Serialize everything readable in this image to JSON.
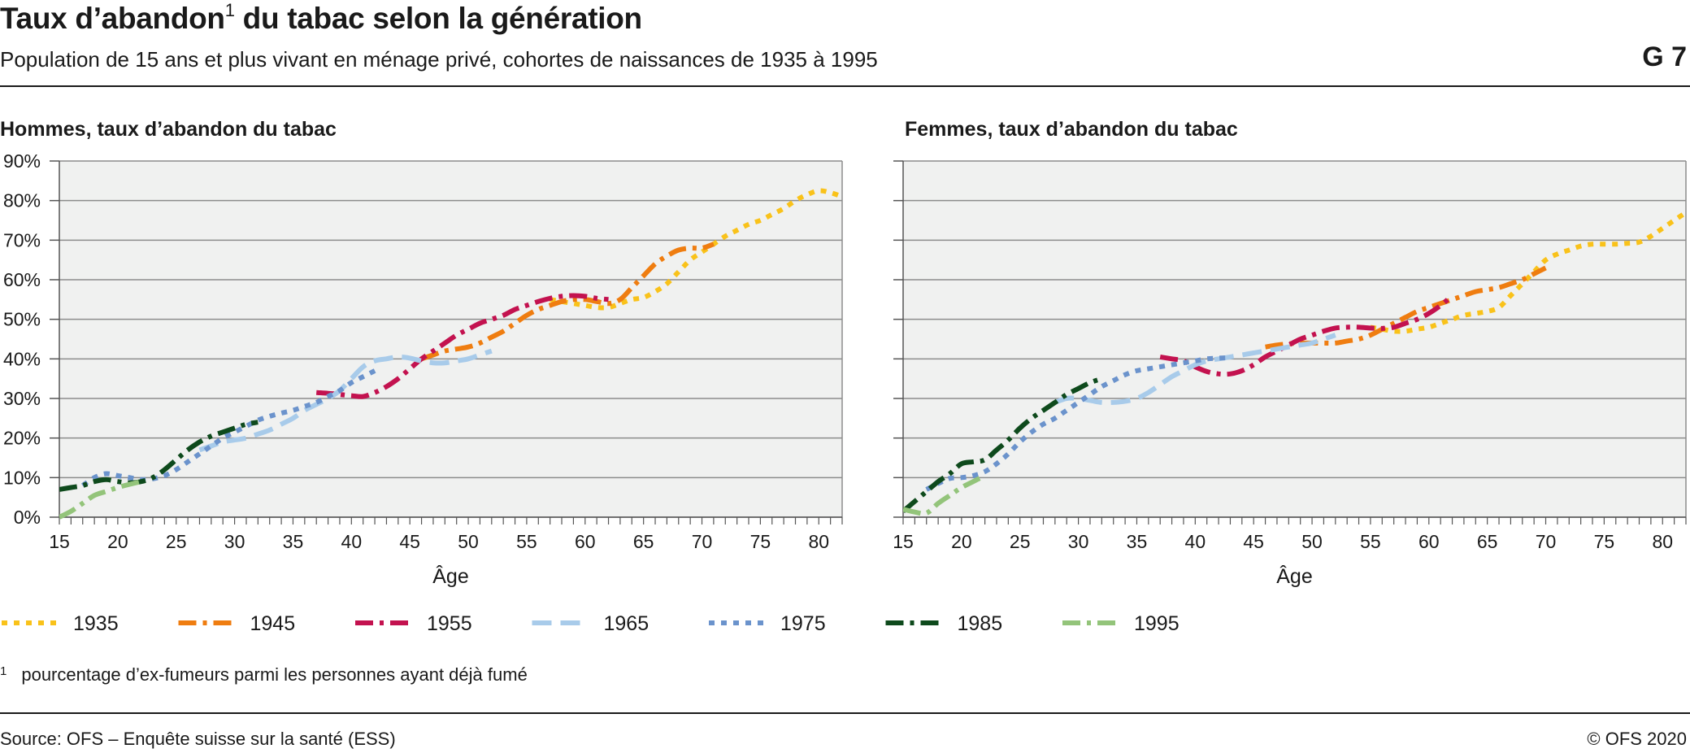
{
  "header": {
    "title_main": "Taux d’abandon",
    "title_sup": "1",
    "title_rest": " du tabac selon la génération",
    "subtitle": "Population de 15 ans et plus vivant en ménage privé, cohortes de naissances de 1935 à 1995",
    "figure_number": "G 7"
  },
  "footnote": {
    "marker": "1",
    "text": "pourcentage d’ex-fumeurs parmi les personnes ayant déjà fumé"
  },
  "source": "Source: OFS – Enquête suisse sur la santé (ESS)",
  "copyright": "© OFS 2020",
  "colors": {
    "1935": "#f9c21a",
    "1945": "#ef7d10",
    "1955": "#c3124f",
    "1965": "#a8cbea",
    "1975": "#6b93cc",
    "1985": "#0e4a1c",
    "1995": "#93c47a",
    "plot_bg": "#f0f1f0",
    "grid": "#8c8c8c"
  },
  "chart_data": [
    {
      "type": "line",
      "title": "Hommes, taux d’abandon du tabac",
      "xlabel": "Âge",
      "ylabel": "",
      "xlim": [
        15,
        82
      ],
      "ylim": [
        0,
        90
      ],
      "x_ticks": [
        15,
        20,
        25,
        30,
        35,
        40,
        45,
        50,
        55,
        60,
        65,
        70,
        75,
        80
      ],
      "y_ticks": [
        0,
        10,
        20,
        30,
        40,
        50,
        60,
        70,
        80,
        90
      ],
      "y_tick_labels": [
        "0%",
        "10%",
        "20%",
        "30%",
        "40%",
        "50%",
        "60%",
        "70%",
        "80%",
        "90%"
      ],
      "grid": true,
      "series": [
        {
          "name": "1935",
          "x": [
            57,
            58,
            59,
            60,
            61,
            62,
            63,
            64,
            65,
            66,
            67,
            68,
            69,
            70,
            71,
            72,
            73,
            74,
            75,
            76,
            77,
            78,
            79,
            80,
            81,
            82
          ],
          "y": [
            55,
            54.5,
            54,
            53.5,
            53,
            53,
            54,
            55,
            55.5,
            57,
            59,
            62,
            65,
            67,
            69,
            71,
            72.5,
            74,
            75,
            76.5,
            78,
            80,
            81.5,
            82.5,
            82,
            81
          ]
        },
        {
          "name": "1945",
          "x": [
            46,
            47,
            48,
            49,
            50,
            51,
            52,
            53,
            54,
            55,
            56,
            57,
            58,
            59,
            60,
            61,
            62,
            63,
            64,
            65,
            66,
            67,
            68,
            69,
            70,
            71
          ],
          "y": [
            40,
            41,
            42,
            42.5,
            43,
            44,
            45.5,
            47,
            49,
            51,
            52.5,
            53.5,
            54.5,
            55,
            55,
            54.5,
            54,
            55,
            58,
            61,
            64,
            66,
            67.5,
            68,
            68,
            69
          ]
        },
        {
          "name": "1955",
          "x": [
            37,
            38,
            39,
            40,
            41,
            42,
            43,
            44,
            45,
            46,
            47,
            48,
            49,
            50,
            51,
            52,
            53,
            54,
            55,
            56,
            57,
            58,
            59,
            60,
            61,
            62
          ],
          "y": [
            31.5,
            31.3,
            31,
            30.7,
            30.5,
            31.5,
            33,
            35,
            37.5,
            40,
            42,
            44,
            46,
            47.5,
            49,
            50,
            51,
            52.5,
            53.5,
            54.5,
            55.3,
            55.8,
            56,
            55.8,
            55.3,
            55
          ]
        },
        {
          "name": "1965",
          "x": [
            27,
            28,
            29,
            30,
            31,
            32,
            33,
            34,
            35,
            36,
            37,
            38,
            39,
            40,
            41,
            42,
            43,
            44,
            45,
            46,
            47,
            48,
            49,
            50,
            51,
            52
          ],
          "y": [
            17,
            18,
            19,
            19.5,
            20,
            21,
            22,
            23.5,
            25,
            27,
            28.5,
            30,
            32,
            35,
            38,
            39.5,
            40,
            40.5,
            40.2,
            39.5,
            39,
            39,
            39.5,
            40,
            41,
            42
          ]
        },
        {
          "name": "1975",
          "x": [
            17,
            18,
            19,
            20,
            21,
            22,
            23,
            24,
            25,
            26,
            27,
            28,
            29,
            30,
            31,
            32,
            33,
            34,
            35,
            36,
            37,
            38,
            39,
            40,
            41,
            42
          ],
          "y": [
            8,
            10,
            11,
            10.5,
            10,
            9.5,
            9.7,
            10.5,
            12,
            14,
            16,
            18,
            20,
            21.5,
            23,
            24.5,
            25.5,
            26.3,
            27,
            28,
            29,
            30.5,
            32,
            34,
            35.5,
            37
          ]
        },
        {
          "name": "1985",
          "x": [
            15,
            16,
            17,
            18,
            19,
            20,
            21,
            22,
            23,
            24,
            25,
            26,
            27,
            28,
            29,
            30,
            31,
            32
          ],
          "y": [
            7,
            7.5,
            8,
            9,
            9.5,
            9,
            8.7,
            9,
            10,
            12,
            14.5,
            17,
            19,
            20.5,
            21.5,
            22.5,
            23.5,
            24
          ]
        },
        {
          "name": "1995",
          "x": [
            15,
            16,
            17,
            18,
            19,
            20,
            21,
            22
          ],
          "y": [
            0,
            1.5,
            3.5,
            5.5,
            6.5,
            7.5,
            8.3,
            9
          ]
        }
      ]
    },
    {
      "type": "line",
      "title": "Femmes, taux d’abandon du tabac",
      "xlabel": "Âge",
      "ylabel": "",
      "xlim": [
        15,
        82
      ],
      "ylim": [
        0,
        90
      ],
      "x_ticks": [
        15,
        20,
        25,
        30,
        35,
        40,
        45,
        50,
        55,
        60,
        65,
        70,
        75,
        80
      ],
      "y_ticks": [
        0,
        10,
        20,
        30,
        40,
        50,
        60,
        70,
        80,
        90
      ],
      "grid": true,
      "series": [
        {
          "name": "1935",
          "x": [
            55,
            56,
            57,
            58,
            59,
            60,
            61,
            62,
            63,
            64,
            65,
            66,
            67,
            68,
            69,
            70,
            71,
            72,
            73,
            74,
            75,
            76,
            77,
            78,
            79,
            80,
            81,
            82
          ],
          "y": [
            48,
            47.5,
            47,
            47,
            47.5,
            48,
            49,
            50,
            51,
            51.5,
            52,
            53,
            56,
            59,
            62,
            65,
            66.5,
            67.5,
            68.5,
            69,
            69,
            69,
            69.2,
            69.5,
            71,
            73,
            75,
            77
          ]
        },
        {
          "name": "1945",
          "x": [
            46,
            47,
            48,
            49,
            50,
            51,
            52,
            53,
            54,
            55,
            56,
            57,
            58,
            59,
            60,
            61,
            62,
            63,
            64,
            65,
            66,
            67,
            68,
            69,
            70
          ],
          "y": [
            43,
            43.5,
            43.8,
            44,
            44,
            44,
            44,
            44.5,
            45,
            46,
            47.5,
            49,
            50.5,
            52,
            53,
            54,
            55,
            56,
            57,
            57.5,
            58,
            59,
            60,
            61.5,
            63
          ]
        },
        {
          "name": "1955",
          "x": [
            37,
            38,
            39,
            40,
            41,
            42,
            43,
            44,
            45,
            46,
            47,
            48,
            49,
            50,
            51,
            52,
            53,
            54,
            55,
            56,
            57,
            58,
            59,
            60,
            61,
            62
          ],
          "y": [
            40.5,
            40,
            39.5,
            38,
            36.8,
            36.2,
            36.2,
            37,
            38.5,
            40.5,
            42,
            43.5,
            45,
            46,
            47,
            47.8,
            48,
            48,
            47.8,
            47.7,
            48,
            49,
            50,
            51.5,
            53.5,
            56
          ]
        },
        {
          "name": "1965",
          "x": [
            28,
            29,
            30,
            31,
            32,
            33,
            34,
            35,
            36,
            37,
            38,
            39,
            40,
            41,
            42,
            43,
            44,
            45,
            46,
            47,
            48,
            49,
            50,
            51,
            52
          ],
          "y": [
            29,
            30,
            30,
            29.5,
            29,
            29,
            29.3,
            30,
            31.5,
            33.5,
            35.5,
            37,
            38.5,
            39.5,
            40,
            40.5,
            41,
            41.5,
            42,
            42.5,
            43,
            43.5,
            44,
            45,
            46
          ]
        },
        {
          "name": "1975",
          "x": [
            17,
            18,
            19,
            20,
            21,
            22,
            23,
            24,
            25,
            26,
            27,
            28,
            29,
            30,
            31,
            32,
            33,
            34,
            35,
            36,
            37,
            38,
            39,
            40,
            41,
            42,
            43
          ],
          "y": [
            7,
            8.5,
            9.8,
            10,
            10.5,
            11.5,
            13.5,
            16,
            19,
            21.5,
            23.5,
            25,
            27,
            29,
            31,
            33,
            34.5,
            36,
            37,
            37.5,
            38,
            38.5,
            39,
            39.5,
            40,
            40.2,
            40.3
          ]
        },
        {
          "name": "1985",
          "x": [
            15,
            16,
            17,
            18,
            19,
            20,
            21,
            22,
            23,
            24,
            25,
            26,
            27,
            28,
            29,
            30,
            31,
            32
          ],
          "y": [
            1.5,
            4,
            6.5,
            9,
            11,
            13.5,
            14,
            14.5,
            17,
            19.5,
            22.5,
            25,
            27,
            29,
            31,
            32.5,
            34,
            35
          ]
        },
        {
          "name": "1995",
          "x": [
            15,
            16,
            17,
            18,
            19,
            20,
            21,
            22
          ],
          "y": [
            2,
            1.3,
            1,
            3.5,
            5.5,
            7.5,
            9,
            10.5
          ]
        }
      ]
    }
  ],
  "legend": [
    {
      "label": "1935",
      "color": "#f9c21a",
      "style": "dotted"
    },
    {
      "label": "1945",
      "color": "#ef7d10",
      "style": "dashdot"
    },
    {
      "label": "1955",
      "color": "#c3124f",
      "style": "dashdot"
    },
    {
      "label": "1965",
      "color": "#a8cbea",
      "style": "dashed"
    },
    {
      "label": "1975",
      "color": "#6b93cc",
      "style": "dotted"
    },
    {
      "label": "1985",
      "color": "#0e4a1c",
      "style": "dashdot"
    },
    {
      "label": "1995",
      "color": "#93c47a",
      "style": "dashdot"
    }
  ]
}
